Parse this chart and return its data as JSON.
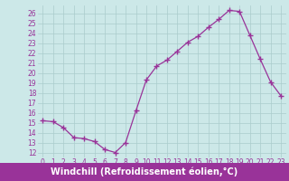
{
  "x": [
    0,
    1,
    2,
    3,
    4,
    5,
    6,
    7,
    8,
    9,
    10,
    11,
    12,
    13,
    14,
    15,
    16,
    17,
    18,
    19,
    20,
    21,
    22,
    23
  ],
  "y": [
    15.2,
    15.1,
    14.5,
    13.5,
    13.4,
    13.1,
    12.3,
    12.0,
    13.0,
    16.2,
    19.3,
    20.7,
    21.3,
    22.2,
    23.1,
    23.7,
    24.6,
    25.4,
    26.3,
    26.2,
    23.8,
    21.4,
    19.1,
    17.7
  ],
  "line_color": "#993399",
  "marker": "+",
  "bg_color": "#cce8e8",
  "grid_color": "#aacccc",
  "xlabel": "Windchill (Refroidissement éolien,°C)",
  "ylabel_ticks": [
    12,
    13,
    14,
    15,
    16,
    17,
    18,
    19,
    20,
    21,
    22,
    23,
    24,
    25,
    26
  ],
  "xlim": [
    -0.5,
    23.5
  ],
  "ylim": [
    11.5,
    26.8
  ],
  "tick_color": "#993399",
  "xlabel_bg": "#993399",
  "tick_fontsize": 5.5,
  "xlabel_fontsize": 7.0
}
